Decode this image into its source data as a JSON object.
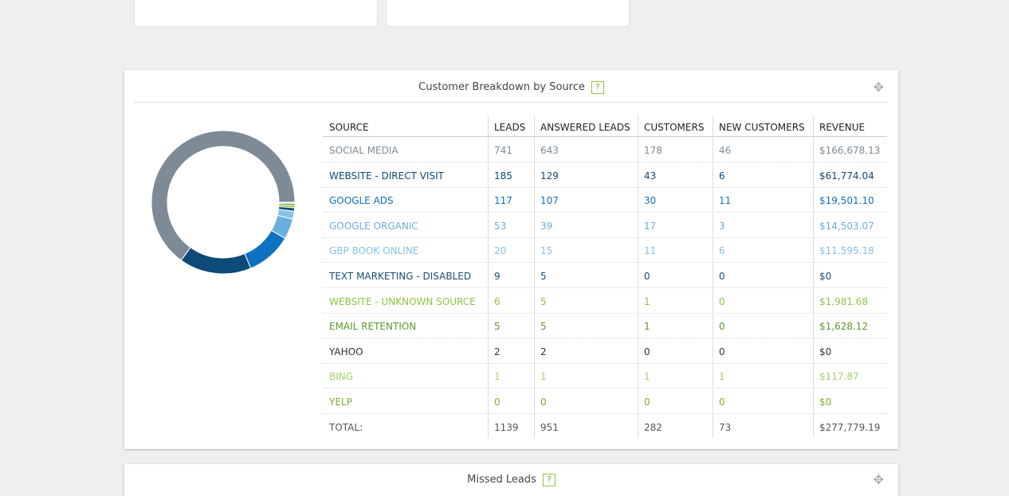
{
  "panel": {
    "title": "Customer Breakdown by Source",
    "help": "?",
    "table": {
      "columns": [
        "SOURCE",
        "LEADS",
        "ANSWERED LEADS",
        "CUSTOMERS",
        "NEW CUSTOMERS",
        "REVENUE"
      ],
      "rows": [
        {
          "cells": [
            "SOCIAL MEDIA",
            741,
            643,
            178,
            46,
            "$166,678.13"
          ],
          "color": "#7d8b97"
        },
        {
          "cells": [
            "WEBSITE - DIRECT VISIT",
            185,
            129,
            43,
            6,
            "$61,774.04"
          ],
          "color": "#0e4a78"
        },
        {
          "cells": [
            "GOOGLE ADS",
            117,
            107,
            30,
            11,
            "$19,501.10"
          ],
          "color": "#0d72c2"
        },
        {
          "cells": [
            "GOOGLE ORGANIC",
            53,
            39,
            17,
            3,
            "$14,503.07"
          ],
          "color": "#6aaede"
        },
        {
          "cells": [
            "GBP BOOK ONLINE",
            20,
            15,
            11,
            6,
            "$11,595.18"
          ],
          "color": "#84c2ea"
        },
        {
          "cells": [
            "TEXT MARKETING - DISABLED",
            9,
            5,
            0,
            0,
            "$0"
          ],
          "color": "#174e72"
        },
        {
          "cells": [
            "WEBSITE - UNKNOWN SOURCE",
            6,
            5,
            1,
            0,
            "$1,981.68"
          ],
          "color": "#8dc63f"
        },
        {
          "cells": [
            "EMAIL RETENTION",
            5,
            5,
            1,
            0,
            "$1,628.12"
          ],
          "color": "#5a9a2a"
        },
        {
          "cells": [
            "YAHOO",
            2,
            2,
            0,
            0,
            "$0"
          ],
          "color": "#333333"
        },
        {
          "cells": [
            "BING",
            1,
            1,
            1,
            1,
            "$117.87"
          ],
          "color": "#a2d46c"
        },
        {
          "cells": [
            "YELP",
            0,
            0,
            0,
            0,
            "$0"
          ],
          "color": "#7ab030"
        }
      ],
      "total": [
        "TOTAL:",
        1139,
        951,
        282,
        73,
        "$277,779.19"
      ]
    }
  },
  "next_panel": {
    "title": "Missed Leads",
    "help": "?"
  }
}
